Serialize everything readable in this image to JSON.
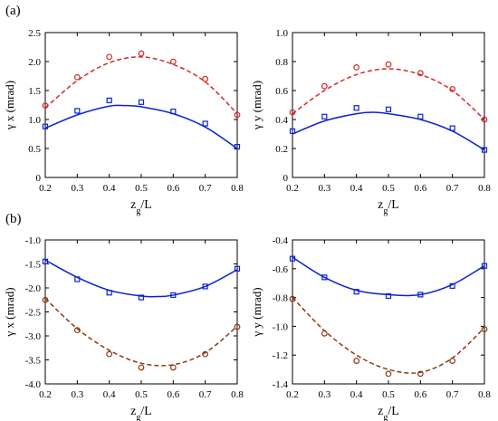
{
  "figure": {
    "panel_labels": [
      "(a)",
      "(b)"
    ]
  },
  "colors": {
    "blue": "#0a22d6",
    "red": "#d42a2a",
    "brown": "#8b3a12"
  },
  "chart_data": [
    {
      "type": "line",
      "panel": "(a)",
      "xlabel": "zg/L",
      "ylabel": "γ x  (mrad)",
      "xlim": [
        0.2,
        0.8
      ],
      "ylim": [
        0,
        2.5
      ],
      "xticks": [
        "0.2",
        "0.3",
        "0.4",
        "0.5",
        "0.6",
        "0.7",
        "0.8"
      ],
      "yticks": [
        "0",
        "0.5",
        "1.0",
        "1.5",
        "2.0",
        "2.5"
      ],
      "grid": false,
      "series": [
        {
          "style": "solid",
          "color": "blue",
          "x": [
            0.2,
            0.3,
            0.4,
            0.45,
            0.5,
            0.6,
            0.7,
            0.8
          ],
          "y": [
            0.85,
            1.08,
            1.23,
            1.24,
            1.22,
            1.1,
            0.87,
            0.5
          ]
        },
        {
          "style": "square",
          "color": "blue",
          "x": [
            0.2,
            0.3,
            0.4,
            0.5,
            0.6,
            0.7,
            0.8
          ],
          "y": [
            0.88,
            1.15,
            1.33,
            1.3,
            1.14,
            0.93,
            0.53
          ]
        },
        {
          "style": "dashed",
          "color": "red",
          "x": [
            0.2,
            0.3,
            0.4,
            0.5,
            0.6,
            0.7,
            0.8
          ],
          "y": [
            1.2,
            1.67,
            1.98,
            2.08,
            1.95,
            1.65,
            1.1
          ]
        },
        {
          "style": "circle",
          "color": "red",
          "x": [
            0.2,
            0.3,
            0.4,
            0.5,
            0.6,
            0.7,
            0.8
          ],
          "y": [
            1.24,
            1.73,
            2.08,
            2.14,
            2.0,
            1.7,
            1.08
          ]
        }
      ]
    },
    {
      "type": "line",
      "panel": "(a)",
      "xlabel": "zg/L",
      "ylabel": "γ y  (mrad)",
      "xlim": [
        0.2,
        0.8
      ],
      "ylim": [
        0,
        1.0
      ],
      "xticks": [
        "0.2",
        "0.3",
        "0.4",
        "0.5",
        "0.6",
        "0.7",
        "0.8"
      ],
      "yticks": [
        "0",
        "0.2",
        "0.4",
        "0.6",
        "0.8",
        "1.0"
      ],
      "grid": false,
      "series": [
        {
          "style": "solid",
          "color": "blue",
          "x": [
            0.2,
            0.3,
            0.4,
            0.45,
            0.5,
            0.6,
            0.7,
            0.8
          ],
          "y": [
            0.3,
            0.39,
            0.44,
            0.45,
            0.44,
            0.4,
            0.32,
            0.19
          ]
        },
        {
          "style": "square",
          "color": "blue",
          "x": [
            0.2,
            0.3,
            0.4,
            0.5,
            0.6,
            0.7,
            0.8
          ],
          "y": [
            0.32,
            0.42,
            0.48,
            0.47,
            0.42,
            0.34,
            0.19
          ]
        },
        {
          "style": "dashed",
          "color": "red",
          "x": [
            0.2,
            0.3,
            0.4,
            0.5,
            0.6,
            0.7,
            0.8
          ],
          "y": [
            0.44,
            0.6,
            0.71,
            0.75,
            0.71,
            0.6,
            0.4
          ]
        },
        {
          "style": "circle",
          "color": "red",
          "x": [
            0.2,
            0.3,
            0.4,
            0.5,
            0.6,
            0.7,
            0.8
          ],
          "y": [
            0.45,
            0.63,
            0.76,
            0.78,
            0.72,
            0.61,
            0.4
          ]
        }
      ]
    },
    {
      "type": "line",
      "panel": "(b)",
      "xlabel": "zg/L",
      "ylabel": "γ x  (mrad)",
      "xlim": [
        0.2,
        0.8
      ],
      "ylim": [
        -4.0,
        -1.0
      ],
      "xticks": [
        "0.2",
        "0.3",
        "0.4",
        "0.5",
        "0.6",
        "0.7",
        "0.8"
      ],
      "yticks": [
        "-4.0",
        "-3.5",
        "-3.0",
        "-2.5",
        "-2.0",
        "-1.5",
        "-1.0"
      ],
      "grid": false,
      "series": [
        {
          "style": "solid",
          "color": "blue",
          "x": [
            0.2,
            0.3,
            0.4,
            0.5,
            0.55,
            0.6,
            0.7,
            0.8
          ],
          "y": [
            -1.42,
            -1.78,
            -2.05,
            -2.17,
            -2.18,
            -2.15,
            -1.97,
            -1.62
          ]
        },
        {
          "style": "square",
          "color": "blue",
          "x": [
            0.2,
            0.3,
            0.4,
            0.5,
            0.6,
            0.7,
            0.8
          ],
          "y": [
            -1.45,
            -1.82,
            -2.1,
            -2.2,
            -2.15,
            -1.97,
            -1.6
          ]
        },
        {
          "style": "dashed",
          "color": "brown",
          "x": [
            0.2,
            0.3,
            0.4,
            0.5,
            0.6,
            0.7,
            0.8
          ],
          "y": [
            -2.22,
            -2.85,
            -3.3,
            -3.57,
            -3.6,
            -3.35,
            -2.8
          ]
        },
        {
          "style": "circle",
          "color": "brown",
          "x": [
            0.2,
            0.3,
            0.4,
            0.5,
            0.6,
            0.7,
            0.8
          ],
          "y": [
            -2.25,
            -2.88,
            -3.38,
            -3.66,
            -3.66,
            -3.38,
            -2.81
          ]
        }
      ]
    },
    {
      "type": "line",
      "panel": "(b)",
      "xlabel": "zg/L",
      "ylabel": "γ y  (mrad)",
      "xlim": [
        0.2,
        0.8
      ],
      "ylim": [
        -1.4,
        -0.4
      ],
      "xticks": [
        "0.2",
        "0.3",
        "0.4",
        "0.5",
        "0.6",
        "0.7",
        "0.8"
      ],
      "yticks": [
        "-1.4",
        "-1.2",
        "-1.0",
        "-0.8",
        "-0.6",
        "-0.4"
      ],
      "grid": false,
      "series": [
        {
          "style": "solid",
          "color": "blue",
          "x": [
            0.2,
            0.3,
            0.4,
            0.5,
            0.6,
            0.7,
            0.8
          ],
          "y": [
            -0.52,
            -0.66,
            -0.75,
            -0.78,
            -0.78,
            -0.71,
            -0.58
          ]
        },
        {
          "style": "square",
          "color": "blue",
          "x": [
            0.2,
            0.3,
            0.4,
            0.5,
            0.6,
            0.7,
            0.8
          ],
          "y": [
            -0.53,
            -0.66,
            -0.76,
            -0.79,
            -0.78,
            -0.72,
            -0.58
          ]
        },
        {
          "style": "dashed",
          "color": "brown",
          "x": [
            0.2,
            0.3,
            0.4,
            0.5,
            0.6,
            0.7,
            0.8
          ],
          "y": [
            -0.8,
            -1.03,
            -1.2,
            -1.3,
            -1.32,
            -1.22,
            -1.01
          ]
        },
        {
          "style": "circle",
          "color": "brown",
          "x": [
            0.2,
            0.3,
            0.4,
            0.5,
            0.6,
            0.7,
            0.8
          ],
          "y": [
            -0.81,
            -1.05,
            -1.24,
            -1.33,
            -1.33,
            -1.24,
            -1.02
          ]
        }
      ]
    }
  ]
}
